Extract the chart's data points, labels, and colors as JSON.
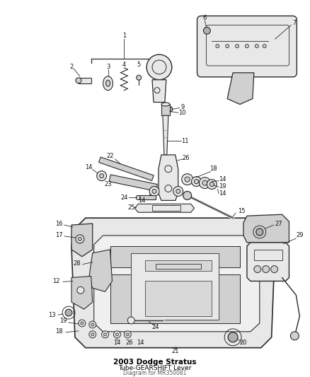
{
  "bg_color": "#ffffff",
  "fig_width": 4.38,
  "fig_height": 5.33,
  "dpi": 100,
  "title": "2003 Dodge Stratus",
  "subtitle": "Tube-GEARSHIFT Lever",
  "diagram_ref": "Diagram for MR350081",
  "line_color": "#2a2a2a",
  "fill_light": "#e8e8e8",
  "fill_mid": "#d0d0d0",
  "fill_dark": "#b0b0b0",
  "label_color": "#111111",
  "label_fs": 6.0
}
